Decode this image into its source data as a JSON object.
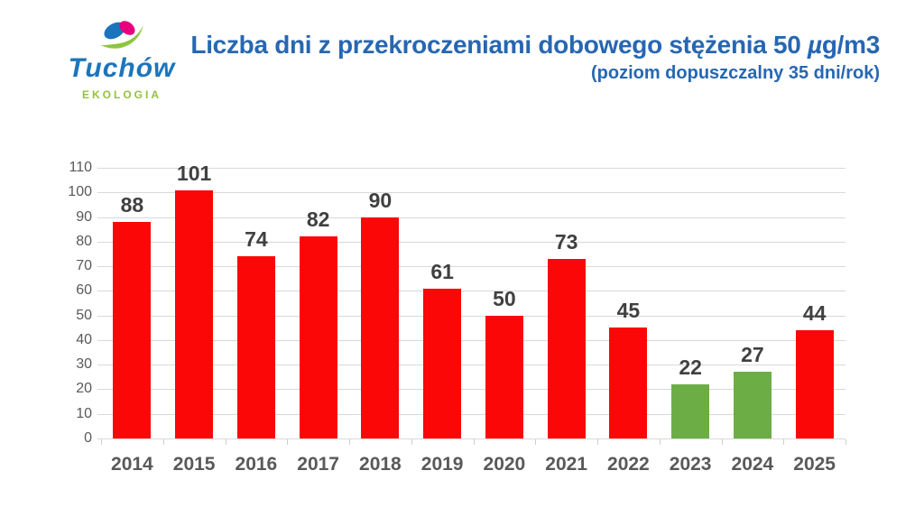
{
  "logo": {
    "name": "Tuchów",
    "subtitle": "EKOLOGIA"
  },
  "header": {
    "title_prefix": "Liczba dni z przekroczeniami dobowego stężenia 50 ",
    "title_mu": "µ",
    "title_suffix": "g/m3",
    "subtitle": "(poziom dopuszczalny 35 dni/rok)"
  },
  "chart_data": {
    "type": "bar",
    "title": "Liczba dni z przekroczeniami dobowego stężenia 50 µg/m3",
    "subtitle": "(poziom dopuszczalny 35 dni/rok)",
    "categories": [
      "2014",
      "2015",
      "2016",
      "2017",
      "2018",
      "2019",
      "2020",
      "2021",
      "2022",
      "2023",
      "2024",
      "2025"
    ],
    "values": [
      88,
      101,
      74,
      82,
      90,
      61,
      50,
      73,
      45,
      22,
      27,
      44
    ],
    "bar_colors": [
      "#FB0707",
      "#FB0707",
      "#FB0707",
      "#FB0707",
      "#FB0707",
      "#FB0707",
      "#FB0707",
      "#FB0707",
      "#FB0707",
      "#6CAE45",
      "#6CAE45",
      "#FB0707"
    ],
    "ylim": [
      0,
      110
    ],
    "ytick_step": 10,
    "grid": true,
    "legend_position": "none",
    "xlabel": "",
    "ylabel": ""
  },
  "colors": {
    "title_blue": "#2767B1",
    "logo_blue": "#1B75BC",
    "logo_magenta": "#E6007E",
    "logo_green": "#8CC63F",
    "ekologia_green": "#94C13D",
    "bar_red": "#FB0707",
    "bar_green": "#6CAE45",
    "gridline": "#D9D9D9",
    "axis_text": "#595959",
    "value_text": "#404040"
  }
}
